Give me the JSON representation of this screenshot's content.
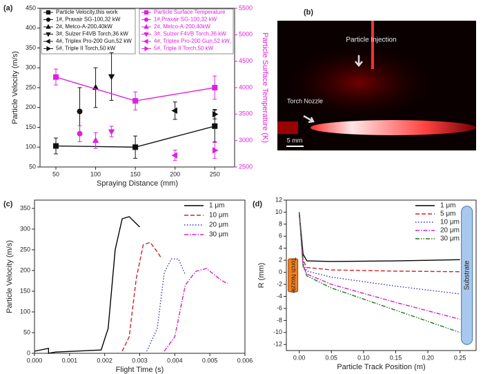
{
  "chart_data": [
    {
      "type": "scatter",
      "panel": "(a)",
      "x_label": "Spraying Distance (mm)",
      "y_label": "Particle Velocity (m/s)",
      "y2_label": "Particle Surface Temperature (K)",
      "xlim": [
        30,
        275
      ],
      "xticks": [
        50,
        100,
        150,
        200,
        250
      ],
      "ylim": [
        50,
        450
      ],
      "yticks": [
        50,
        100,
        150,
        200,
        250,
        300,
        350,
        400,
        450
      ],
      "y2lim": [
        2500,
        5500
      ],
      "y2ticks": [
        2500,
        3000,
        3500,
        4000,
        4500,
        5000,
        5500
      ],
      "series": [
        {
          "name": "Particle Velocity,this work",
          "color": "#111111",
          "marker": "square",
          "line": true,
          "x": [
            50,
            150,
            250
          ],
          "values": [
            103,
            100,
            153
          ],
          "errors": [
            20,
            28,
            40
          ]
        },
        {
          "name": "1#, Praxair SG-100,32 kW",
          "color": "#111111",
          "marker": "circle",
          "x": [
            80
          ],
          "values": [
            190
          ],
          "errors": [
            60
          ]
        },
        {
          "name": "2#, Metco-A-200,40kW",
          "color": "#111111",
          "marker": "triangle-up",
          "x": [
            100
          ],
          "values": [
            250
          ],
          "errors": [
            50
          ]
        },
        {
          "name": "3#, Sulzer F4VB Torch,36 kW",
          "color": "#111111",
          "marker": "triangle-down",
          "x": [
            120
          ],
          "values": [
            278
          ],
          "errors": [
            60
          ]
        },
        {
          "name": "4#, Triplex Pro-200 Gun,52 kW",
          "color": "#111111",
          "marker": "triangle-left",
          "x": [
            200
          ],
          "values": [
            192
          ],
          "errors": [
            22
          ]
        },
        {
          "name": "5#, Triple II Torch,50 kW",
          "color": "#111111",
          "marker": "triangle-right",
          "x": [
            250
          ],
          "values": [
            183
          ],
          "errors": [
            12
          ]
        },
        {
          "name": "Particle Surface Temperature",
          "color": "#e020e0",
          "axis": "y2",
          "marker": "square",
          "line": true,
          "x": [
            50,
            150,
            250
          ],
          "values": [
            4200,
            3750,
            4000
          ],
          "errors": [
            150,
            170,
            220
          ]
        },
        {
          "name": "1#,Praxair SG-100,32 kW",
          "color": "#e020e0",
          "axis": "y2",
          "marker": "circle",
          "x": [
            80
          ],
          "values": [
            3130
          ],
          "errors": [
            150
          ]
        },
        {
          "name": "2#, Metco-A-200,40kW",
          "color": "#e020e0",
          "axis": "y2",
          "marker": "triangle-up",
          "x": [
            100
          ],
          "values": [
            3000
          ],
          "errors": [
            150
          ]
        },
        {
          "name": "3#, Sulzer F4VB Torch,36 kW",
          "color": "#e020e0",
          "axis": "y2",
          "marker": "triangle-down",
          "x": [
            120
          ],
          "values": [
            3170
          ],
          "errors": [
            100
          ]
        },
        {
          "name": "4#, Triplex Pro-200 Gun,52 kW.",
          "color": "#e020e0",
          "axis": "y2",
          "marker": "triangle-left",
          "x": [
            200
          ],
          "values": [
            2720
          ],
          "errors": [
            100
          ]
        },
        {
          "name": "5#, Triple II Torch,50 kW",
          "color": "#e020e0",
          "axis": "y2",
          "marker": "triangle-right",
          "x": [
            250
          ],
          "values": [
            2815
          ],
          "errors": [
            150
          ]
        }
      ]
    },
    {
      "type": "line",
      "panel": "(c)",
      "x_label": "Flight Time (s)",
      "y_label": "Particle Velocity (m/s)",
      "xlim": [
        0,
        0.006
      ],
      "xticks": [
        {
          "value": 0,
          "label": "0.000"
        },
        {
          "value": 0.001,
          "label": "0.001"
        },
        {
          "value": 0.002,
          "label": "0.002"
        },
        {
          "value": 0.003,
          "label": "0.003"
        },
        {
          "value": 0.004,
          "label": "0.004"
        },
        {
          "value": 0.005,
          "label": "0.005"
        },
        {
          "value": 0.006,
          "label": "0.006"
        }
      ],
      "ylim": [
        0,
        370
      ],
      "yticks": [
        0,
        50,
        100,
        150,
        200,
        250,
        300,
        350
      ],
      "series": [
        {
          "name": "1 μm",
          "color": "#000000",
          "dash": "solid",
          "x": [
            0,
            0.0004,
            0.0004,
            0.0006,
            0.0019,
            0.0021,
            0.0023,
            0.0025,
            0.0027,
            0.003
          ],
          "values": [
            5,
            12,
            0,
            3,
            8,
            60,
            250,
            325,
            330,
            305
          ]
        },
        {
          "name": "10 μm",
          "color": "#d0202a",
          "dash": "dash",
          "x": [
            0.0025,
            0.0027,
            0.0029,
            0.0031,
            0.0033,
            0.0035,
            0.0036
          ],
          "values": [
            5,
            40,
            180,
            262,
            268,
            245,
            232
          ]
        },
        {
          "name": "20 μm",
          "color": "#3030c0",
          "dash": "dot",
          "x": [
            0.0032,
            0.0035,
            0.0037,
            0.0039,
            0.0041,
            0.0043
          ],
          "values": [
            5,
            60,
            195,
            228,
            228,
            190
          ]
        },
        {
          "name": "30 μm",
          "color": "#d020d0",
          "dash": "dashdot",
          "x": [
            0.0037,
            0.004,
            0.0043,
            0.0046,
            0.0049,
            0.0053,
            0.0055
          ],
          "values": [
            5,
            40,
            165,
            198,
            205,
            178,
            168
          ]
        }
      ]
    },
    {
      "type": "line",
      "panel": "(d)",
      "x_label": "Particle Track Position (m)",
      "y_label": "R (mm)",
      "annotations": [
        "Torch Nozzle",
        "Substrate"
      ],
      "xlim": [
        -0.02,
        0.275
      ],
      "xticks": [
        {
          "value": 0,
          "label": "0.00"
        },
        {
          "value": 0.05,
          "label": "0.05"
        },
        {
          "value": 0.1,
          "label": "0.10"
        },
        {
          "value": 0.15,
          "label": "0.15"
        },
        {
          "value": 0.2,
          "label": "0.20"
        },
        {
          "value": 0.25,
          "label": "0.25"
        }
      ],
      "ylim": [
        -13,
        12
      ],
      "yticks": [
        -12,
        -10,
        -8,
        -6,
        -4,
        -2,
        0,
        2,
        4,
        6,
        8,
        10,
        12
      ],
      "series": [
        {
          "name": "1 μm",
          "color": "#000000",
          "dash": "solid",
          "x": [
            0,
            0.006,
            0.012,
            0.05,
            0.15,
            0.25
          ],
          "values": [
            10,
            3,
            1.9,
            1.8,
            1.9,
            2.1
          ]
        },
        {
          "name": "5 μm",
          "color": "#d0202a",
          "dash": "dash",
          "x": [
            0,
            0.006,
            0.012,
            0.05,
            0.15,
            0.25
          ],
          "values": [
            10,
            2,
            0.8,
            0.4,
            0.2,
            0.1
          ]
        },
        {
          "name": "10 μm",
          "color": "#3030c0",
          "dash": "dot",
          "x": [
            0,
            0.006,
            0.012,
            0.05,
            0.15,
            0.25
          ],
          "values": [
            10,
            1.5,
            0.2,
            -0.8,
            -2.3,
            -3.6
          ]
        },
        {
          "name": "20 μm",
          "color": "#d020d0",
          "dash": "dashdot",
          "x": [
            0,
            0.006,
            0.012,
            0.05,
            0.15,
            0.25
          ],
          "values": [
            10,
            1.2,
            -0.3,
            -2.0,
            -5.0,
            -7.8
          ]
        },
        {
          "name": "30 μm",
          "color": "#207020",
          "dash": "dashdotdot",
          "x": [
            0,
            0.006,
            0.012,
            0.05,
            0.15,
            0.25
          ],
          "values": [
            10,
            1.0,
            -0.6,
            -2.6,
            -6.3,
            -10.0
          ]
        }
      ]
    }
  ],
  "photo": {
    "panel": "(b)",
    "labels": [
      "Particle Injection",
      "Torch Nozzle",
      "5 mm"
    ]
  }
}
